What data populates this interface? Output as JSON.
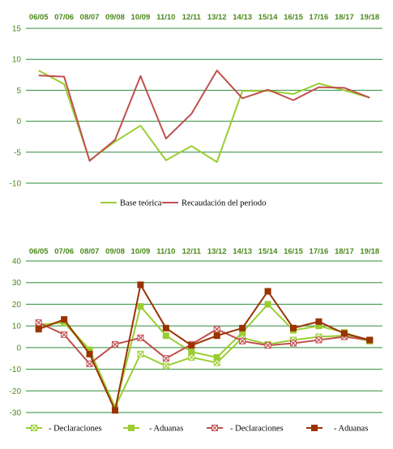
{
  "chart_data": [
    {
      "type": "line",
      "categories": [
        "06/05",
        "07/06",
        "08/07",
        "09/08",
        "10/09",
        "11/10",
        "12/11",
        "13/12",
        "14/13",
        "15/14",
        "16/15",
        "17/16",
        "18/17",
        "19/18"
      ],
      "yticks": [
        "15",
        "10",
        "5",
        "0",
        "-5",
        "-10"
      ],
      "ylim": [
        -10,
        15
      ],
      "grid": "horizontal",
      "legend": "bottom",
      "series": [
        {
          "name": "Base teórica",
          "color": "#9acd32",
          "values": [
            8.2,
            6.0,
            -6.3,
            -3.3,
            -0.7,
            -6.3,
            -4.0,
            -6.6,
            4.9,
            4.9,
            4.4,
            6.1,
            5.0,
            3.8
          ]
        },
        {
          "name": "Recaudación del periodo",
          "color": "#c0504d",
          "values": [
            7.4,
            7.2,
            -6.4,
            -3.0,
            7.3,
            -2.8,
            1.2,
            8.2,
            3.7,
            5.1,
            3.4,
            5.5,
            5.4,
            3.8
          ]
        }
      ]
    },
    {
      "type": "line",
      "categories": [
        "06/05",
        "07/06",
        "08/07",
        "09/08",
        "10/09",
        "11/10",
        "12/11",
        "13/12",
        "14/13",
        "15/14",
        "16/15",
        "17/16",
        "18/17",
        "19/18"
      ],
      "yticks": [
        "40",
        "30",
        "20",
        "10",
        "0",
        "-10",
        "-20",
        "-30"
      ],
      "ylim": [
        -30,
        40
      ],
      "grid": "horizontal",
      "legend": "bottom",
      "series": [
        {
          "name": "- Declaraciones",
          "color": "#9acd32",
          "marker": "x",
          "values": [
            10.5,
            11.5,
            -1.5,
            -27.5,
            -3.0,
            -8.5,
            -4.5,
            -7.0,
            4.5,
            1.5,
            3.5,
            5.0,
            5.5,
            3.0
          ]
        },
        {
          "name": "- Aduanas",
          "color": "#9acd32",
          "marker": "square",
          "values": [
            10.0,
            12.0,
            -1.0,
            -28.0,
            19.0,
            5.5,
            -2.0,
            -4.5,
            7.0,
            20.0,
            8.0,
            10.0,
            7.0,
            3.0
          ]
        },
        {
          "name": "- Declaraciones",
          "color": "#c0504d",
          "marker": "x",
          "values": [
            11.5,
            6.0,
            -7.5,
            1.5,
            4.5,
            -5.0,
            1.5,
            8.5,
            3.0,
            1.0,
            2.0,
            3.5,
            5.0,
            3.5
          ]
        },
        {
          "name": "- Aduanas",
          "color": "#993300",
          "marker": "square",
          "values": [
            8.5,
            13.0,
            -3.0,
            -29.0,
            29.0,
            9.0,
            1.0,
            5.5,
            9.0,
            26.0,
            9.0,
            12.0,
            6.5,
            3.5
          ]
        }
      ]
    }
  ]
}
